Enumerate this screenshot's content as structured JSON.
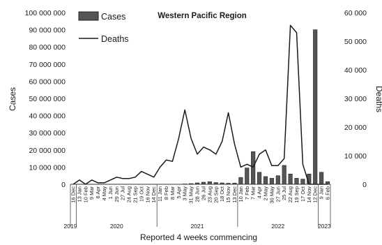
{
  "chart_data": {
    "type": "bar",
    "title": "Western Pacific Region",
    "xlabel": "Reported 4 weeks commencing",
    "ylabel": "Cases",
    "y2label": "Deaths",
    "ylim": [
      0,
      100000000
    ],
    "y2lim": [
      0,
      60000
    ],
    "yticks": [
      "0",
      "10 000 000",
      "20 000 000",
      "30 000 000",
      "40 000 000",
      "50 000 000",
      "60 000 000",
      "70 000 000",
      "80 000 000",
      "90 000 000",
      "100 000 000"
    ],
    "y2ticks": [
      "0",
      "10 000",
      "20 000",
      "30 000",
      "40 000",
      "50 000",
      "60 000"
    ],
    "categories": [
      "16 Dec",
      "13 Jan",
      "10 Feb",
      "9 Mar",
      "6 Apr",
      "4 May",
      "1 Jun",
      "29 Jun",
      "27 Jul",
      "24 Aug",
      "21 Sep",
      "19 Oct",
      "16 Nov",
      "14 Dec",
      "11 Jan",
      "8 Feb",
      "8 Mar",
      "5 Apr",
      "3 May",
      "31 May",
      "28 Jun",
      "26 Jul",
      "23 Aug",
      "20 Sep",
      "18 Oct",
      "15 Nov",
      "13 Dec",
      "10 Jan",
      "7 Feb",
      "7 Mar",
      "4 Apr",
      "2 May",
      "30 May",
      "27 Jun",
      "25 Jul",
      "22 Aug",
      "19 Sep",
      "17 Oct",
      "14 Nov",
      "12 Dec",
      "9 Jan",
      "6 Feb"
    ],
    "years": [
      {
        "label": "2019",
        "start_index": 0
      },
      {
        "label": "2020",
        "start_index": 1
      },
      {
        "label": "2021",
        "start_index": 14
      },
      {
        "label": "2022",
        "start_index": 27
      },
      {
        "label": "2023",
        "start_index": 40
      }
    ],
    "series": [
      {
        "name": "Cases",
        "type": "bar",
        "axis": "left",
        "color": "#555555",
        "values": [
          0,
          0,
          0,
          0,
          0,
          0,
          0,
          0,
          0,
          0,
          0,
          0,
          0,
          0,
          0,
          0,
          0,
          0,
          200000,
          400000,
          800000,
          1200000,
          1500000,
          1000000,
          800000,
          600000,
          700000,
          4000000,
          9500000,
          19000000,
          7000000,
          4500000,
          3500000,
          5000000,
          11000000,
          6000000,
          3500000,
          3000000,
          6000000,
          90000000,
          7000000,
          1500000
        ]
      },
      {
        "name": "Deaths",
        "type": "line",
        "axis": "right",
        "color": "#1a1a1a",
        "values": [
          0,
          1500,
          0,
          1500,
          500,
          500,
          1500,
          2500,
          2000,
          2000,
          2500,
          4500,
          3500,
          2500,
          6000,
          8500,
          8000,
          16000,
          26000,
          16000,
          10500,
          13000,
          12000,
          10500,
          15000,
          25000,
          14000,
          6000,
          7000,
          6000,
          10500,
          12000,
          6500,
          6500,
          9000,
          55500,
          53000,
          7000,
          0,
          0,
          0,
          0
        ]
      }
    ],
    "legend_position": "top-left",
    "grid": false
  }
}
